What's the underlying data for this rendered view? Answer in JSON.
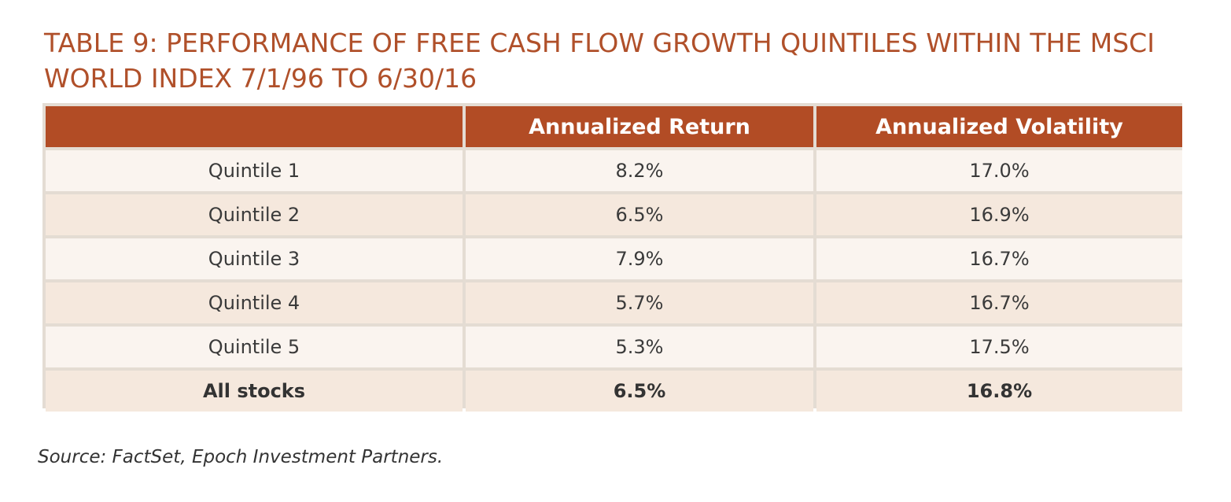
{
  "title_line1": "TABLE 9: PERFORMANCE OF FREE CASH FLOW GROWTH QUINTILES WITHIN THE MSCI",
  "title_line2": "WORLD INDEX 7/1/96 TO 6/30/16",
  "chart_data": {
    "type": "table",
    "title": "TABLE 9: PERFORMANCE OF FREE CASH FLOW GROWTH QUINTILES WITHIN THE MSCI WORLD INDEX 7/1/96 TO 6/30/16",
    "columns": [
      "",
      "Annualized Return",
      "Annualized Volatility"
    ],
    "rows": [
      {
        "label": "Quintile 1",
        "return": "8.2%",
        "volatility": "17.0%"
      },
      {
        "label": "Quintile 2",
        "return": "6.5%",
        "volatility": "16.9%"
      },
      {
        "label": "Quintile 3",
        "return": "7.9%",
        "volatility": "16.7%"
      },
      {
        "label": "Quintile 4",
        "return": "5.7%",
        "volatility": "16.7%"
      },
      {
        "label": "Quintile 5",
        "return": "5.3%",
        "volatility": "17.5%"
      },
      {
        "label": "All stocks",
        "return": "6.5%",
        "volatility": "16.8%"
      }
    ]
  },
  "source": "Source: FactSet, Epoch Investment Partners.",
  "colors": {
    "title": "#b0502a",
    "header_bg": "#b24c25",
    "row_light": "#faf4ef",
    "row_dark": "#f5e8dd",
    "border": "#e4dcd3"
  }
}
